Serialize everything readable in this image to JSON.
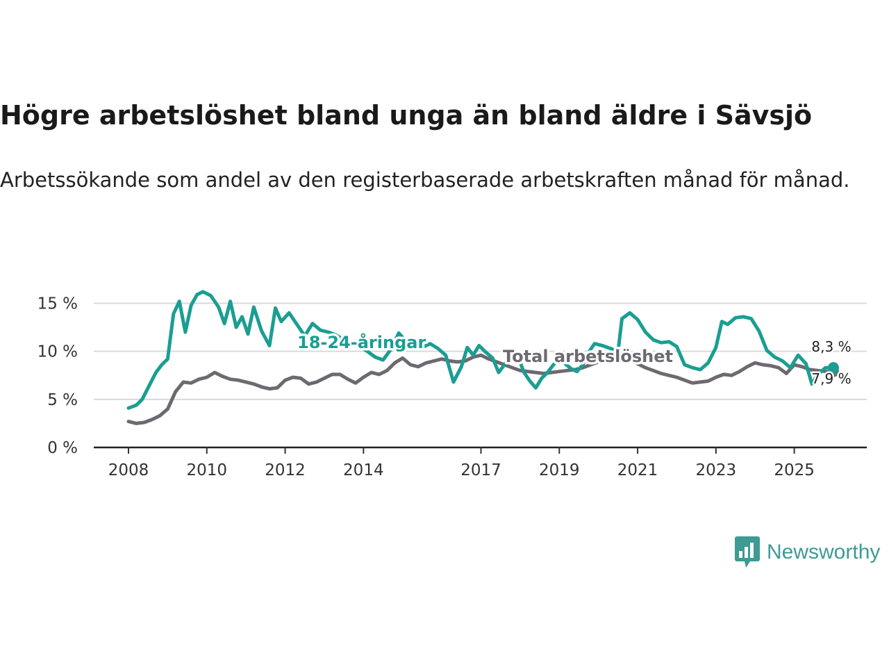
{
  "chart_data": {
    "type": "line",
    "title": "Högre arbetslöshet bland unga än bland äldre i Sävsjö",
    "subtitle": "Arbetssökande som andel av den registerbaserade arbetskraften månad för månad.",
    "xlabel": "",
    "ylabel": "",
    "x_range": [
      2008,
      2026.0
    ],
    "ylim": [
      0,
      18
    ],
    "y_ticks": [
      0,
      5,
      10,
      15
    ],
    "y_tick_labels": [
      "0 %",
      "5 %",
      "10 %",
      "15 %"
    ],
    "x_ticks": [
      2008,
      2010,
      2012,
      2014,
      2017,
      2019,
      2021,
      2023,
      2025
    ],
    "x_tick_labels": [
      "2008",
      "2010",
      "2012",
      "2014",
      "2017",
      "2019",
      "2021",
      "2023",
      "2025"
    ],
    "grid": true,
    "series": [
      {
        "name": "Total arbetslöshet",
        "label": "Total arbetslöshet",
        "color": "#6d6970",
        "end_label": "7,9 %",
        "points": [
          [
            2008.0,
            2.7
          ],
          [
            2008.2,
            2.5
          ],
          [
            2008.4,
            2.6
          ],
          [
            2008.6,
            2.9
          ],
          [
            2008.8,
            3.3
          ],
          [
            2009.0,
            4.0
          ],
          [
            2009.2,
            5.8
          ],
          [
            2009.4,
            6.8
          ],
          [
            2009.6,
            6.7
          ],
          [
            2009.8,
            7.1
          ],
          [
            2010.0,
            7.3
          ],
          [
            2010.2,
            7.8
          ],
          [
            2010.4,
            7.4
          ],
          [
            2010.6,
            7.1
          ],
          [
            2010.8,
            7.0
          ],
          [
            2011.0,
            6.8
          ],
          [
            2011.2,
            6.6
          ],
          [
            2011.4,
            6.3
          ],
          [
            2011.6,
            6.1
          ],
          [
            2011.8,
            6.2
          ],
          [
            2012.0,
            7.0
          ],
          [
            2012.2,
            7.3
          ],
          [
            2012.4,
            7.2
          ],
          [
            2012.6,
            6.6
          ],
          [
            2012.8,
            6.8
          ],
          [
            2013.0,
            7.2
          ],
          [
            2013.2,
            7.6
          ],
          [
            2013.4,
            7.6
          ],
          [
            2013.6,
            7.1
          ],
          [
            2013.8,
            6.7
          ],
          [
            2014.0,
            7.3
          ],
          [
            2014.2,
            7.8
          ],
          [
            2014.4,
            7.6
          ],
          [
            2014.6,
            8.0
          ],
          [
            2014.8,
            8.8
          ],
          [
            2015.0,
            9.3
          ],
          [
            2015.2,
            8.6
          ],
          [
            2015.4,
            8.4
          ],
          [
            2015.6,
            8.8
          ],
          [
            2015.8,
            9.0
          ],
          [
            2016.0,
            9.2
          ],
          [
            2016.2,
            9.0
          ],
          [
            2016.4,
            8.9
          ],
          [
            2016.6,
            9.0
          ],
          [
            2016.8,
            9.4
          ],
          [
            2017.0,
            9.6
          ],
          [
            2017.2,
            9.2
          ],
          [
            2017.4,
            8.9
          ],
          [
            2017.6,
            8.6
          ],
          [
            2017.8,
            8.3
          ],
          [
            2018.0,
            8.0
          ],
          [
            2018.2,
            7.9
          ],
          [
            2018.4,
            7.8
          ],
          [
            2018.6,
            7.7
          ],
          [
            2018.8,
            7.8
          ],
          [
            2019.0,
            7.9
          ],
          [
            2019.2,
            8.0
          ],
          [
            2019.4,
            8.1
          ],
          [
            2019.6,
            8.3
          ],
          [
            2019.8,
            8.6
          ],
          [
            2020.0,
            8.9
          ],
          [
            2020.2,
            9.3
          ],
          [
            2020.4,
            9.6
          ],
          [
            2020.6,
            9.5
          ],
          [
            2020.8,
            9.1
          ],
          [
            2021.0,
            8.7
          ],
          [
            2021.2,
            8.3
          ],
          [
            2021.4,
            8.0
          ],
          [
            2021.6,
            7.7
          ],
          [
            2021.8,
            7.5
          ],
          [
            2022.0,
            7.3
          ],
          [
            2022.2,
            7.0
          ],
          [
            2022.4,
            6.7
          ],
          [
            2022.6,
            6.8
          ],
          [
            2022.8,
            6.9
          ],
          [
            2023.0,
            7.3
          ],
          [
            2023.2,
            7.6
          ],
          [
            2023.4,
            7.5
          ],
          [
            2023.6,
            7.9
          ],
          [
            2023.8,
            8.4
          ],
          [
            2024.0,
            8.8
          ],
          [
            2024.2,
            8.6
          ],
          [
            2024.4,
            8.5
          ],
          [
            2024.6,
            8.3
          ],
          [
            2024.8,
            7.7
          ],
          [
            2025.0,
            8.6
          ],
          [
            2025.2,
            8.4
          ],
          [
            2025.4,
            8.1
          ],
          [
            2025.6,
            8.0
          ],
          [
            2025.8,
            7.9
          ],
          [
            2026.0,
            7.9
          ]
        ]
      },
      {
        "name": "18-24-åringar",
        "label": "18-24-åringar",
        "color": "#1a9e92",
        "end_label": "8,3 %",
        "points": [
          [
            2008.0,
            4.1
          ],
          [
            2008.2,
            4.4
          ],
          [
            2008.35,
            5.0
          ],
          [
            2008.5,
            6.2
          ],
          [
            2008.7,
            7.8
          ],
          [
            2008.85,
            8.6
          ],
          [
            2009.0,
            9.2
          ],
          [
            2009.15,
            13.9
          ],
          [
            2009.3,
            15.2
          ],
          [
            2009.45,
            12.0
          ],
          [
            2009.6,
            14.8
          ],
          [
            2009.75,
            15.9
          ],
          [
            2009.9,
            16.2
          ],
          [
            2010.1,
            15.8
          ],
          [
            2010.3,
            14.6
          ],
          [
            2010.45,
            12.9
          ],
          [
            2010.6,
            15.2
          ],
          [
            2010.75,
            12.5
          ],
          [
            2010.9,
            13.6
          ],
          [
            2011.05,
            11.8
          ],
          [
            2011.2,
            14.6
          ],
          [
            2011.4,
            12.1
          ],
          [
            2011.6,
            10.6
          ],
          [
            2011.75,
            14.5
          ],
          [
            2011.9,
            13.1
          ],
          [
            2012.1,
            14.0
          ],
          [
            2012.3,
            12.8
          ],
          [
            2012.5,
            11.6
          ],
          [
            2012.7,
            12.9
          ],
          [
            2012.9,
            12.2
          ],
          [
            2013.1,
            12.0
          ],
          [
            2013.3,
            11.7
          ],
          [
            2013.5,
            11.2
          ],
          [
            2013.7,
            10.8
          ],
          [
            2013.9,
            10.5
          ],
          [
            2014.1,
            10.0
          ],
          [
            2014.3,
            9.4
          ],
          [
            2014.5,
            9.1
          ],
          [
            2014.7,
            10.2
          ],
          [
            2014.9,
            11.9
          ],
          [
            2015.1,
            11.0
          ],
          [
            2015.3,
            10.6
          ],
          [
            2015.5,
            10.4
          ],
          [
            2015.7,
            10.8
          ],
          [
            2015.9,
            10.3
          ],
          [
            2016.1,
            9.6
          ],
          [
            2016.3,
            6.8
          ],
          [
            2016.5,
            8.4
          ],
          [
            2016.65,
            10.4
          ],
          [
            2016.8,
            9.6
          ],
          [
            2016.95,
            10.6
          ],
          [
            2017.1,
            10.0
          ],
          [
            2017.3,
            9.3
          ],
          [
            2017.45,
            7.8
          ],
          [
            2017.6,
            8.6
          ],
          [
            2017.8,
            9.8
          ],
          [
            2017.95,
            9.4
          ],
          [
            2018.1,
            7.8
          ],
          [
            2018.25,
            6.9
          ],
          [
            2018.4,
            6.2
          ],
          [
            2018.55,
            7.2
          ],
          [
            2018.7,
            7.8
          ],
          [
            2018.85,
            8.6
          ],
          [
            2019.0,
            9.2
          ],
          [
            2019.15,
            8.7
          ],
          [
            2019.3,
            8.2
          ],
          [
            2019.45,
            7.9
          ],
          [
            2019.6,
            8.6
          ],
          [
            2019.75,
            9.9
          ],
          [
            2019.9,
            10.8
          ],
          [
            2020.1,
            10.6
          ],
          [
            2020.3,
            10.3
          ],
          [
            2020.5,
            10.0
          ],
          [
            2020.6,
            13.4
          ],
          [
            2020.8,
            14.0
          ],
          [
            2021.0,
            13.3
          ],
          [
            2021.2,
            12.0
          ],
          [
            2021.4,
            11.2
          ],
          [
            2021.6,
            10.9
          ],
          [
            2021.8,
            11.0
          ],
          [
            2022.0,
            10.5
          ],
          [
            2022.2,
            8.6
          ],
          [
            2022.4,
            8.3
          ],
          [
            2022.6,
            8.1
          ],
          [
            2022.8,
            8.8
          ],
          [
            2023.0,
            10.4
          ],
          [
            2023.15,
            13.1
          ],
          [
            2023.3,
            12.8
          ],
          [
            2023.5,
            13.5
          ],
          [
            2023.7,
            13.6
          ],
          [
            2023.9,
            13.4
          ],
          [
            2024.1,
            12.1
          ],
          [
            2024.3,
            10.1
          ],
          [
            2024.5,
            9.4
          ],
          [
            2024.7,
            9.0
          ],
          [
            2024.9,
            8.3
          ],
          [
            2025.1,
            9.6
          ],
          [
            2025.3,
            8.7
          ],
          [
            2025.45,
            6.6
          ],
          [
            2025.6,
            7.6
          ],
          [
            2025.8,
            8.3
          ],
          [
            2026.0,
            8.3
          ]
        ]
      }
    ]
  },
  "branding": {
    "name": "Newsworthy",
    "color": "#3d9a94"
  }
}
